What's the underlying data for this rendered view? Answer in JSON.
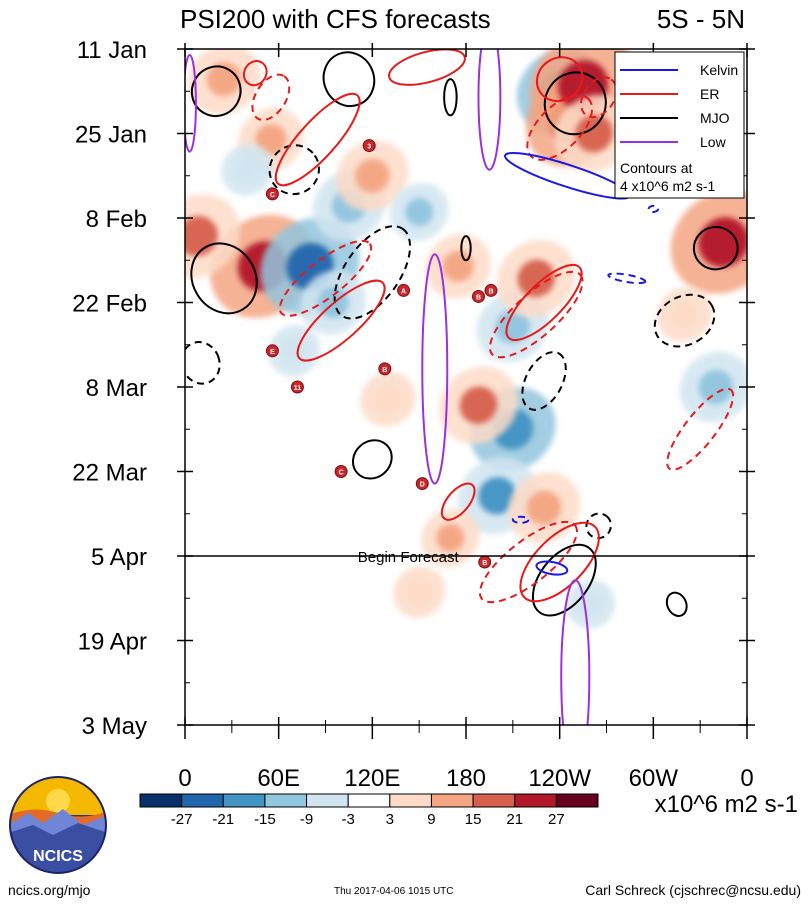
{
  "chart_data": {
    "type": "heatmap",
    "title": "PSI200 with CFS forecasts",
    "region": "5S - 5N",
    "x_ticks": [
      "0",
      "60E",
      "120E",
      "180",
      "120W",
      "60W",
      "0"
    ],
    "x_range_deg_east": [
      0,
      360
    ],
    "y_ticks": [
      "11 Jan",
      "25 Jan",
      "8 Feb",
      "22 Feb",
      "8 Mar",
      "22 Mar",
      "5 Apr",
      "19 Apr",
      "3 May"
    ],
    "y_range_days_from_11Jan": [
      0,
      112
    ],
    "forecast_line": {
      "label": "Begin Forecast",
      "day": 84
    },
    "legend": {
      "items": [
        {
          "label": "Kelvin",
          "color": "#1a1ae6"
        },
        {
          "label": "ER",
          "color": "#e61a1a"
        },
        {
          "label": "MJO",
          "color": "#000000"
        },
        {
          "label": "Low",
          "color": "#9b30e0"
        }
      ],
      "note_line1": "Contours at",
      "note_line2": "4 x10^6 m2 s-1",
      "position": "top-right"
    },
    "colorbar": {
      "levels": [
        "-27",
        "-21",
        "-15",
        "-9",
        "-3",
        "3",
        "9",
        "15",
        "21",
        "27"
      ],
      "colors": [
        "#08306b",
        "#2166ac",
        "#4393c3",
        "#92c5de",
        "#d1e5f0",
        "#ffffff",
        "#fddbc7",
        "#f4a582",
        "#d6604d",
        "#b2182b",
        "#67001f"
      ],
      "units": "x10^6 m2 s-1"
    },
    "field_blobs": [
      {
        "lon": 50,
        "day": 36,
        "value": 24
      },
      {
        "lon": 80,
        "day": 36,
        "value": -22
      },
      {
        "lon": 105,
        "day": 26,
        "value": -14
      },
      {
        "lon": 120,
        "day": 21,
        "value": 14
      },
      {
        "lon": 55,
        "day": 15,
        "value": 12
      },
      {
        "lon": 95,
        "day": 42,
        "value": -12
      },
      {
        "lon": 150,
        "day": 27,
        "value": -10
      },
      {
        "lon": 175,
        "day": 36,
        "value": 12
      },
      {
        "lon": 210,
        "day": 46,
        "value": -14
      },
      {
        "lon": 225,
        "day": 38,
        "value": 16
      },
      {
        "lon": 240,
        "day": 7,
        "value": -18
      },
      {
        "lon": 248,
        "day": 12,
        "value": 20
      },
      {
        "lon": 255,
        "day": 6,
        "value": 24
      },
      {
        "lon": 262,
        "day": 14,
        "value": 16
      },
      {
        "lon": 345,
        "day": 32,
        "value": 24
      },
      {
        "lon": 8,
        "day": 31,
        "value": 18
      },
      {
        "lon": 340,
        "day": 56,
        "value": -14
      },
      {
        "lon": 210,
        "day": 63,
        "value": -18
      },
      {
        "lon": 188,
        "day": 59,
        "value": 16
      },
      {
        "lon": 200,
        "day": 74,
        "value": -16
      },
      {
        "lon": 230,
        "day": 76,
        "value": 14
      },
      {
        "lon": 170,
        "day": 81,
        "value": 10
      },
      {
        "lon": 70,
        "day": 50,
        "value": -8
      },
      {
        "lon": 130,
        "day": 58,
        "value": 9
      },
      {
        "lon": 25,
        "day": 5,
        "value": 14
      },
      {
        "lon": 40,
        "day": 20,
        "value": -8
      },
      {
        "lon": 150,
        "day": 90,
        "value": 8
      },
      {
        "lon": 260,
        "day": 92,
        "value": -7
      },
      {
        "lon": 320,
        "day": 44,
        "value": 9
      }
    ],
    "contours": [
      {
        "type": "MJO",
        "lon": 20,
        "day": 7,
        "rx": 16,
        "ry": 4,
        "angle": -62,
        "dashed": false
      },
      {
        "type": "MJO",
        "lon": 105,
        "day": 5,
        "rx": 16,
        "ry": 4.5,
        "angle": -22,
        "dashed": false
      },
      {
        "type": "MJO",
        "lon": 250,
        "day": 9,
        "rx": 20,
        "ry": 5,
        "angle": -55,
        "dashed": false
      },
      {
        "type": "MJO",
        "lon": 170,
        "day": 8,
        "rx": 4,
        "ry": 3,
        "angle": 0,
        "dashed": false
      },
      {
        "type": "MJO",
        "lon": 25,
        "day": 38,
        "rx": 20,
        "ry": 6,
        "angle": -32,
        "dashed": false
      },
      {
        "type": "MJO",
        "lon": 340,
        "day": 33,
        "rx": 14,
        "ry": 3.5,
        "angle": -6,
        "dashed": false
      },
      {
        "type": "MJO",
        "lon": 180,
        "day": 33,
        "rx": 3,
        "ry": 2,
        "angle": 0,
        "dashed": false
      },
      {
        "type": "MJO",
        "lon": 120,
        "day": 68,
        "rx": 13,
        "ry": 3,
        "angle": -42,
        "dashed": false
      },
      {
        "type": "MJO",
        "lon": 243,
        "day": 88,
        "rx": 26,
        "ry": 4,
        "angle": -52,
        "dashed": false
      },
      {
        "type": "MJO",
        "lon": 315,
        "day": 92,
        "rx": 6,
        "ry": 2,
        "angle": -25,
        "dashed": false
      },
      {
        "type": "MJO",
        "lon": 120,
        "day": 37,
        "rx": 34,
        "ry": 4.5,
        "angle": -55,
        "dashed": true
      },
      {
        "type": "MJO",
        "lon": 70,
        "day": 20,
        "rx": 16,
        "ry": 4,
        "angle": -35,
        "dashed": true
      },
      {
        "type": "MJO",
        "lon": 10,
        "day": 52,
        "rx": 12,
        "ry": 3.5,
        "angle": -22,
        "dashed": true
      },
      {
        "type": "MJO",
        "lon": 230,
        "day": 55,
        "rx": 20,
        "ry": 3,
        "angle": -62,
        "dashed": true
      },
      {
        "type": "MJO",
        "lon": 320,
        "day": 45,
        "rx": 20,
        "ry": 4,
        "angle": -28,
        "dashed": true
      },
      {
        "type": "MJO",
        "lon": 265,
        "day": 79,
        "rx": 8,
        "ry": 2,
        "angle": -50,
        "dashed": true
      },
      {
        "type": "ER",
        "lon": 45,
        "day": 4,
        "rx": 8,
        "ry": 1.8,
        "angle": -58,
        "dashed": false
      },
      {
        "type": "ER",
        "lon": 85,
        "day": 15,
        "rx": 38,
        "ry": 3,
        "angle": -48,
        "dashed": false
      },
      {
        "type": "ER",
        "lon": 155,
        "day": 3,
        "rx": 25,
        "ry": 2.5,
        "angle": -15,
        "dashed": false
      },
      {
        "type": "ER",
        "lon": 240,
        "day": 5,
        "rx": 15,
        "ry": 3.5,
        "angle": -35,
        "dashed": false
      },
      {
        "type": "ER",
        "lon": 230,
        "day": 42,
        "rx": 32,
        "ry": 3,
        "angle": -45,
        "dashed": false
      },
      {
        "type": "ER",
        "lon": 100,
        "day": 45,
        "rx": 36,
        "ry": 3,
        "angle": -42,
        "dashed": false
      },
      {
        "type": "ER",
        "lon": 175,
        "day": 75,
        "rx": 14,
        "ry": 1.8,
        "angle": -50,
        "dashed": false
      },
      {
        "type": "ER",
        "lon": 240,
        "day": 85,
        "rx": 32,
        "ry": 4,
        "angle": -45,
        "dashed": false
      },
      {
        "type": "ER",
        "lon": 55,
        "day": 8,
        "rx": 16,
        "ry": 2.5,
        "angle": -58,
        "dashed": true
      },
      {
        "type": "ER",
        "lon": 240,
        "day": 13,
        "rx": 26,
        "ry": 3.5,
        "angle": -45,
        "dashed": true
      },
      {
        "type": "ER",
        "lon": 265,
        "day": 8,
        "rx": 14,
        "ry": 2.5,
        "angle": -55,
        "dashed": true
      },
      {
        "type": "ER",
        "lon": 90,
        "day": 38,
        "rx": 36,
        "ry": 3,
        "angle": -38,
        "dashed": true
      },
      {
        "type": "ER",
        "lon": 225,
        "day": 44,
        "rx": 38,
        "ry": 3.5,
        "angle": -42,
        "dashed": true
      },
      {
        "type": "ER",
        "lon": 220,
        "day": 85,
        "rx": 38,
        "ry": 3.5,
        "angle": -38,
        "dashed": true
      },
      {
        "type": "ER",
        "lon": 330,
        "day": 63,
        "rx": 32,
        "ry": 2.5,
        "angle": -52,
        "dashed": true
      },
      {
        "type": "Kelvin",
        "lon": 245,
        "day": 21,
        "rx": 42,
        "ry": 1.8,
        "angle": 18,
        "dashed": false
      },
      {
        "type": "Kelvin",
        "lon": 235,
        "day": 86,
        "rx": 10,
        "ry": 1,
        "angle": 10,
        "dashed": false
      },
      {
        "type": "Kelvin",
        "lon": 300,
        "day": 26.5,
        "rx": 3,
        "ry": 0.5,
        "angle": 0,
        "dashed": true
      },
      {
        "type": "Kelvin",
        "lon": 283,
        "day": 38,
        "rx": 12,
        "ry": 0.6,
        "angle": 10,
        "dashed": true
      },
      {
        "type": "Kelvin",
        "lon": 215,
        "day": 78,
        "rx": 5,
        "ry": 0.5,
        "angle": 0,
        "dashed": true
      },
      {
        "type": "Low",
        "lon": 160,
        "day": 53,
        "rx": 8,
        "ry": 19,
        "angle": 0,
        "dashed": false
      },
      {
        "type": "Low",
        "lon": 250,
        "day": 104,
        "rx": 9,
        "ry": 16,
        "angle": 0,
        "dashed": false
      },
      {
        "type": "Low",
        "lon": 195,
        "day": 8,
        "rx": 7,
        "ry": 12,
        "angle": 0,
        "dashed": false
      },
      {
        "type": "Low",
        "lon": 3,
        "day": 9,
        "rx": 4,
        "ry": 8,
        "angle": 0,
        "dashed": false
      }
    ],
    "storm_markers": [
      {
        "lon": 118,
        "day": 16,
        "label": "3"
      },
      {
        "lon": 56,
        "day": 24,
        "label": "C"
      },
      {
        "lon": 140,
        "day": 40,
        "label": "A"
      },
      {
        "lon": 188,
        "day": 41,
        "label": "B"
      },
      {
        "lon": 196,
        "day": 40,
        "label": "B"
      },
      {
        "lon": 56,
        "day": 50,
        "label": "E"
      },
      {
        "lon": 128,
        "day": 53,
        "label": "B"
      },
      {
        "lon": 72,
        "day": 56,
        "label": "11"
      },
      {
        "lon": 100,
        "day": 70,
        "label": "C"
      },
      {
        "lon": 152,
        "day": 72,
        "label": "D"
      },
      {
        "lon": 192,
        "day": 85,
        "label": "B"
      }
    ]
  },
  "footer": {
    "left": "ncics.org/mjo",
    "middle": "Thu 2017-04-06 1015 UTC",
    "right": "Carl Schreck (cjschrec@ncsu.edu)",
    "logo_text": "NCICS"
  }
}
